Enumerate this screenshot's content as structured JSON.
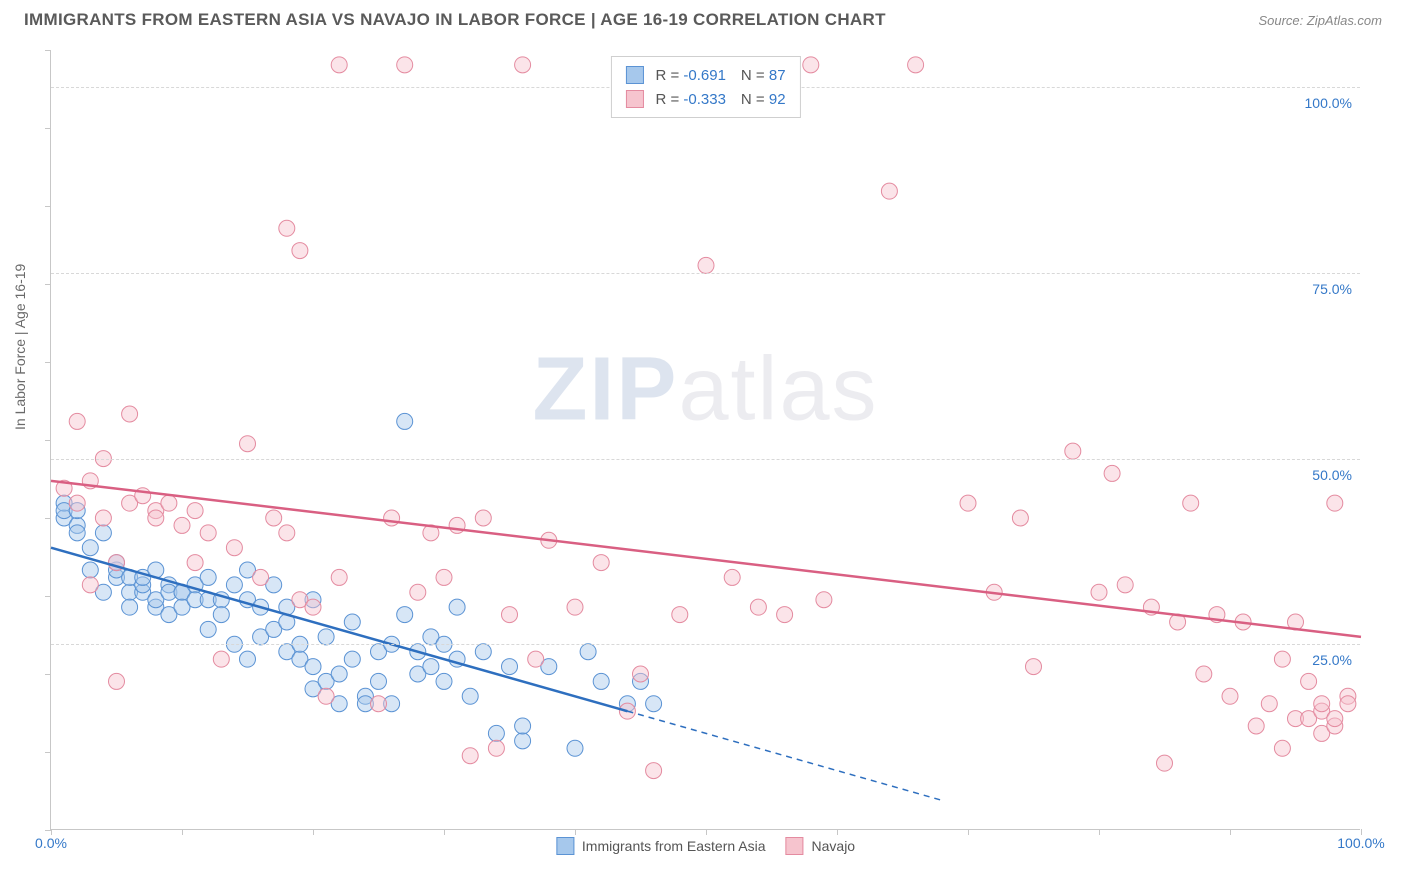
{
  "header": {
    "title": "IMMIGRANTS FROM EASTERN ASIA VS NAVAJO IN LABOR FORCE | AGE 16-19 CORRELATION CHART",
    "source_label": "Source: ",
    "source_value": "ZipAtlas.com"
  },
  "chart": {
    "type": "scatter",
    "ylabel": "In Labor Force | Age 16-19",
    "xlim": [
      0,
      100
    ],
    "ylim": [
      0,
      105
    ],
    "xticks": [
      0.0,
      100.0
    ],
    "yticks": [
      25.0,
      50.0,
      75.0,
      100.0
    ],
    "xtick_minor_count": 11,
    "ytick_minor_count": 11,
    "tick_suffix": "%",
    "grid_color": "#d8d8d8",
    "axis_color": "#c7c7c7",
    "tick_label_color": "#3478c8",
    "background_color": "#ffffff",
    "marker_radius": 8,
    "marker_opacity": 0.45,
    "line_width": 2.5,
    "series": [
      {
        "name": "Immigrants from Eastern Asia",
        "fill_color": "#a6c8ec",
        "stroke_color": "#5b93d4",
        "line_color": "#2e6fbf",
        "r_value": -0.691,
        "n_value": 87,
        "trend": {
          "x1": 0,
          "y1": 38,
          "x2": 44,
          "y2": 16,
          "dash_x2": 68,
          "dash_y2": 4
        },
        "points": [
          [
            1,
            42
          ],
          [
            1,
            44
          ],
          [
            1,
            43
          ],
          [
            2,
            41
          ],
          [
            2,
            40
          ],
          [
            2,
            43
          ],
          [
            3,
            35
          ],
          [
            3,
            38
          ],
          [
            4,
            40
          ],
          [
            4,
            32
          ],
          [
            5,
            34
          ],
          [
            5,
            35
          ],
          [
            5,
            36
          ],
          [
            6,
            32
          ],
          [
            6,
            34
          ],
          [
            6,
            30
          ],
          [
            7,
            32
          ],
          [
            7,
            33
          ],
          [
            7,
            34
          ],
          [
            8,
            30
          ],
          [
            8,
            31
          ],
          [
            8,
            35
          ],
          [
            9,
            33
          ],
          [
            9,
            32
          ],
          [
            9,
            29
          ],
          [
            10,
            32
          ],
          [
            10,
            32
          ],
          [
            10,
            30
          ],
          [
            11,
            33
          ],
          [
            11,
            31
          ],
          [
            12,
            34
          ],
          [
            12,
            31
          ],
          [
            12,
            27
          ],
          [
            13,
            31
          ],
          [
            13,
            29
          ],
          [
            14,
            33
          ],
          [
            14,
            25
          ],
          [
            15,
            35
          ],
          [
            15,
            31
          ],
          [
            15,
            23
          ],
          [
            16,
            30
          ],
          [
            16,
            26
          ],
          [
            17,
            27
          ],
          [
            17,
            33
          ],
          [
            18,
            28
          ],
          [
            18,
            30
          ],
          [
            18,
            24
          ],
          [
            19,
            23
          ],
          [
            19,
            25
          ],
          [
            20,
            19
          ],
          [
            20,
            22
          ],
          [
            20,
            31
          ],
          [
            21,
            20
          ],
          [
            21,
            26
          ],
          [
            22,
            17
          ],
          [
            22,
            21
          ],
          [
            23,
            23
          ],
          [
            23,
            28
          ],
          [
            24,
            18
          ],
          [
            24,
            17
          ],
          [
            25,
            24
          ],
          [
            25,
            20
          ],
          [
            26,
            25
          ],
          [
            26,
            17
          ],
          [
            27,
            29
          ],
          [
            27,
            55
          ],
          [
            28,
            21
          ],
          [
            28,
            24
          ],
          [
            29,
            26
          ],
          [
            29,
            22
          ],
          [
            30,
            20
          ],
          [
            30,
            25
          ],
          [
            31,
            23
          ],
          [
            31,
            30
          ],
          [
            32,
            18
          ],
          [
            33,
            24
          ],
          [
            34,
            13
          ],
          [
            35,
            22
          ],
          [
            36,
            12
          ],
          [
            36,
            14
          ],
          [
            38,
            22
          ],
          [
            40,
            11
          ],
          [
            41,
            24
          ],
          [
            42,
            20
          ],
          [
            44,
            17
          ],
          [
            45,
            20
          ],
          [
            46,
            17
          ]
        ]
      },
      {
        "name": "Navajo",
        "fill_color": "#f6c4ce",
        "stroke_color": "#e48ba0",
        "line_color": "#d95f82",
        "r_value": -0.333,
        "n_value": 92,
        "trend": {
          "x1": 0,
          "y1": 47,
          "x2": 100,
          "y2": 26
        },
        "points": [
          [
            1,
            46
          ],
          [
            2,
            44
          ],
          [
            2,
            55
          ],
          [
            3,
            33
          ],
          [
            3,
            47
          ],
          [
            4,
            50
          ],
          [
            4,
            42
          ],
          [
            5,
            20
          ],
          [
            5,
            36
          ],
          [
            6,
            56
          ],
          [
            6,
            44
          ],
          [
            7,
            45
          ],
          [
            8,
            43
          ],
          [
            8,
            42
          ],
          [
            9,
            44
          ],
          [
            10,
            41
          ],
          [
            11,
            43
          ],
          [
            11,
            36
          ],
          [
            12,
            40
          ],
          [
            13,
            23
          ],
          [
            14,
            38
          ],
          [
            15,
            52
          ],
          [
            16,
            34
          ],
          [
            17,
            42
          ],
          [
            18,
            40
          ],
          [
            18,
            81
          ],
          [
            19,
            78
          ],
          [
            19,
            31
          ],
          [
            20,
            30
          ],
          [
            21,
            18
          ],
          [
            22,
            34
          ],
          [
            22,
            103
          ],
          [
            25,
            17
          ],
          [
            26,
            42
          ],
          [
            27,
            103
          ],
          [
            28,
            32
          ],
          [
            29,
            40
          ],
          [
            30,
            34
          ],
          [
            31,
            41
          ],
          [
            32,
            10
          ],
          [
            33,
            42
          ],
          [
            34,
            11
          ],
          [
            35,
            29
          ],
          [
            36,
            103
          ],
          [
            37,
            23
          ],
          [
            38,
            39
          ],
          [
            40,
            30
          ],
          [
            42,
            36
          ],
          [
            44,
            16
          ],
          [
            45,
            21
          ],
          [
            46,
            8
          ],
          [
            48,
            29
          ],
          [
            50,
            76
          ],
          [
            52,
            34
          ],
          [
            54,
            30
          ],
          [
            56,
            29
          ],
          [
            58,
            103
          ],
          [
            59,
            31
          ],
          [
            64,
            86
          ],
          [
            66,
            103
          ],
          [
            70,
            44
          ],
          [
            72,
            32
          ],
          [
            74,
            42
          ],
          [
            75,
            22
          ],
          [
            78,
            51
          ],
          [
            80,
            32
          ],
          [
            81,
            48
          ],
          [
            82,
            33
          ],
          [
            84,
            30
          ],
          [
            85,
            9
          ],
          [
            86,
            28
          ],
          [
            87,
            44
          ],
          [
            88,
            21
          ],
          [
            89,
            29
          ],
          [
            90,
            18
          ],
          [
            91,
            28
          ],
          [
            92,
            14
          ],
          [
            93,
            17
          ],
          [
            94,
            23
          ],
          [
            94,
            11
          ],
          [
            95,
            28
          ],
          [
            95,
            15
          ],
          [
            96,
            15
          ],
          [
            96,
            20
          ],
          [
            97,
            16
          ],
          [
            97,
            17
          ],
          [
            97,
            13
          ],
          [
            98,
            14
          ],
          [
            98,
            15
          ],
          [
            98,
            44
          ],
          [
            99,
            18
          ],
          [
            99,
            17
          ]
        ]
      }
    ],
    "watermark": {
      "part1": "ZIP",
      "part2": "atlas"
    }
  }
}
